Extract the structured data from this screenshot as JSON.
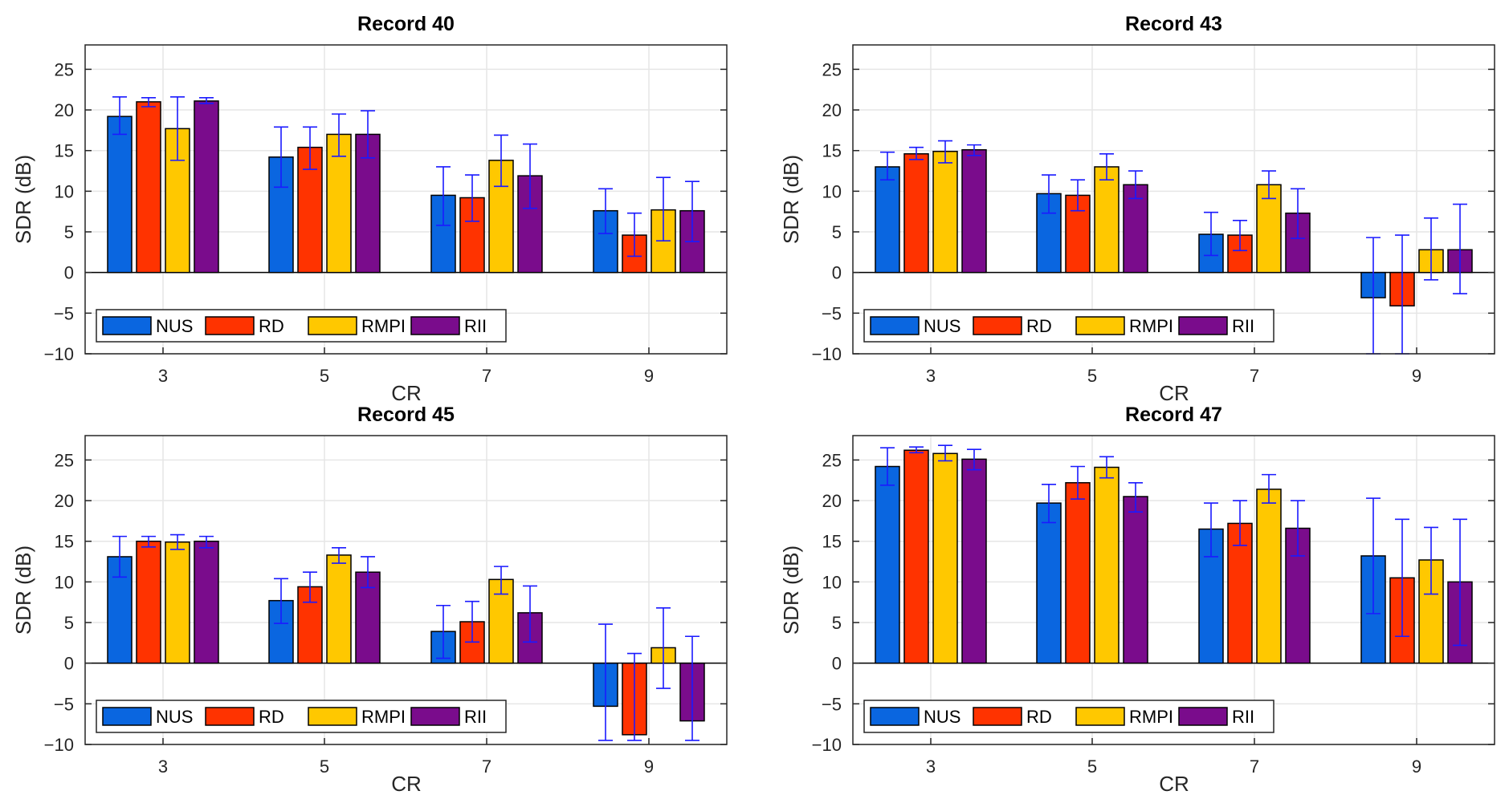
{
  "colors": {
    "NUS": "#0a66e0",
    "RD": "#ff3300",
    "RMPI": "#ffc800",
    "RII": "#7a0c8c",
    "error_bar": "#1a1aff",
    "grid": "#e6e6e6",
    "axis": "#000000"
  },
  "chart_data": [
    {
      "type": "bar",
      "title": "Record 40",
      "xlabel": "CR",
      "ylabel": "SDR (dB)",
      "categories": [
        "3",
        "5",
        "7",
        "9"
      ],
      "ylim": [
        -10,
        28
      ],
      "yticks": [
        "25",
        "20",
        "15",
        "10",
        "5",
        "0",
        "−5",
        "−10"
      ],
      "ytick_values": [
        25,
        20,
        15,
        10,
        5,
        0,
        -5,
        -10
      ],
      "legend": [
        "NUS",
        "RD",
        "RMPI",
        "RII"
      ],
      "legend_location": "bottom-left",
      "series": [
        {
          "name": "NUS",
          "values": [
            19.2,
            14.2,
            9.5,
            7.6
          ],
          "err_low": [
            17.0,
            10.5,
            5.8,
            4.8
          ],
          "err_high": [
            21.6,
            17.9,
            13.0,
            10.3
          ]
        },
        {
          "name": "RD",
          "values": [
            21.0,
            15.4,
            9.2,
            4.6
          ],
          "err_low": [
            20.4,
            12.7,
            6.3,
            2.0
          ],
          "err_high": [
            21.5,
            17.9,
            12.0,
            7.3
          ]
        },
        {
          "name": "RMPI",
          "values": [
            17.7,
            17.0,
            13.8,
            7.7
          ],
          "err_low": [
            13.8,
            14.3,
            10.6,
            3.9
          ],
          "err_high": [
            21.6,
            19.5,
            16.9,
            11.7
          ]
        },
        {
          "name": "RII",
          "values": [
            21.1,
            17.0,
            11.9,
            7.6
          ],
          "err_low": [
            20.8,
            14.1,
            7.9,
            3.8
          ],
          "err_high": [
            21.5,
            19.9,
            15.8,
            11.2
          ]
        }
      ]
    },
    {
      "type": "bar",
      "title": "Record 43",
      "xlabel": "CR",
      "ylabel": "SDR (dB)",
      "categories": [
        "3",
        "5",
        "7",
        "9"
      ],
      "ylim": [
        -10,
        28
      ],
      "yticks": [
        "25",
        "20",
        "15",
        "10",
        "5",
        "0",
        "−5",
        "−10"
      ],
      "ytick_values": [
        25,
        20,
        15,
        10,
        5,
        0,
        -5,
        -10
      ],
      "legend": [
        "NUS",
        "RD",
        "RMPI",
        "RII"
      ],
      "legend_location": "bottom-left",
      "series": [
        {
          "name": "NUS",
          "values": [
            13.0,
            9.7,
            4.7,
            -3.1
          ],
          "err_low": [
            11.4,
            7.3,
            2.1,
            -10.0
          ],
          "err_high": [
            14.8,
            12.0,
            7.4,
            4.3
          ]
        },
        {
          "name": "RD",
          "values": [
            14.6,
            9.5,
            4.6,
            -4.1
          ],
          "err_low": [
            13.9,
            7.6,
            2.7,
            -10.0
          ],
          "err_high": [
            15.4,
            11.4,
            6.4,
            4.6
          ]
        },
        {
          "name": "RMPI",
          "values": [
            14.9,
            13.0,
            10.8,
            2.8
          ],
          "err_low": [
            13.5,
            11.4,
            9.1,
            -0.9
          ],
          "err_high": [
            16.2,
            14.6,
            12.5,
            6.7
          ]
        },
        {
          "name": "RII",
          "values": [
            15.1,
            10.8,
            7.3,
            2.8
          ],
          "err_low": [
            14.4,
            9.1,
            4.2,
            -2.6
          ],
          "err_high": [
            15.7,
            12.5,
            10.3,
            8.4
          ]
        }
      ]
    },
    {
      "type": "bar",
      "title": "Record 45",
      "xlabel": "CR",
      "ylabel": "SDR (dB)",
      "categories": [
        "3",
        "5",
        "7",
        "9"
      ],
      "ylim": [
        -10,
        28
      ],
      "yticks": [
        "25",
        "20",
        "15",
        "10",
        "5",
        "0",
        "−5",
        "−10"
      ],
      "ytick_values": [
        25,
        20,
        15,
        10,
        5,
        0,
        -5,
        -10
      ],
      "legend": [
        "NUS",
        "RD",
        "RMPI",
        "RII"
      ],
      "legend_location": "bottom-left",
      "series": [
        {
          "name": "NUS",
          "values": [
            13.1,
            7.7,
            3.9,
            -5.3
          ],
          "err_low": [
            10.6,
            4.9,
            0.6,
            -9.5
          ],
          "err_high": [
            15.6,
            10.4,
            7.1,
            4.8
          ]
        },
        {
          "name": "RD",
          "values": [
            15.0,
            9.4,
            5.1,
            -8.8
          ],
          "err_low": [
            14.3,
            7.5,
            2.6,
            -9.5
          ],
          "err_high": [
            15.6,
            11.2,
            7.6,
            1.2
          ]
        },
        {
          "name": "RMPI",
          "values": [
            14.9,
            13.3,
            10.3,
            1.9
          ],
          "err_low": [
            14.0,
            12.3,
            8.5,
            -3.1
          ],
          "err_high": [
            15.8,
            14.2,
            11.9,
            6.8
          ]
        },
        {
          "name": "RII",
          "values": [
            15.0,
            11.2,
            6.2,
            -7.1
          ],
          "err_low": [
            14.2,
            9.3,
            2.6,
            -9.5
          ],
          "err_high": [
            15.6,
            13.1,
            9.5,
            3.3
          ]
        }
      ]
    },
    {
      "type": "bar",
      "title": "Record 47",
      "xlabel": "CR",
      "ylabel": "SDR (dB)",
      "categories": [
        "3",
        "5",
        "7",
        "9"
      ],
      "ylim": [
        -10,
        28
      ],
      "yticks": [
        "25",
        "20",
        "15",
        "10",
        "5",
        "0",
        "−5",
        "−10"
      ],
      "ytick_values": [
        25,
        20,
        15,
        10,
        5,
        0,
        -5,
        -10
      ],
      "legend": [
        "NUS",
        "RD",
        "RMPI",
        "RII"
      ],
      "legend_location": "bottom-left",
      "series": [
        {
          "name": "NUS",
          "values": [
            24.2,
            19.7,
            16.5,
            13.2
          ],
          "err_low": [
            21.9,
            17.3,
            13.1,
            6.1
          ],
          "err_high": [
            26.5,
            22.0,
            19.7,
            20.3
          ]
        },
        {
          "name": "RD",
          "values": [
            26.2,
            22.2,
            17.2,
            10.5
          ],
          "err_low": [
            25.9,
            20.2,
            14.5,
            3.3
          ],
          "err_high": [
            26.6,
            24.2,
            20.0,
            17.7
          ]
        },
        {
          "name": "RMPI",
          "values": [
            25.8,
            24.1,
            21.4,
            12.7
          ],
          "err_low": [
            24.9,
            22.8,
            19.7,
            8.5
          ],
          "err_high": [
            26.8,
            25.4,
            23.2,
            16.7
          ]
        },
        {
          "name": "RII",
          "values": [
            25.1,
            20.5,
            16.6,
            10.0
          ],
          "err_low": [
            23.8,
            18.6,
            13.2,
            2.2
          ],
          "err_high": [
            26.3,
            22.2,
            20.0,
            17.7
          ]
        }
      ]
    }
  ]
}
